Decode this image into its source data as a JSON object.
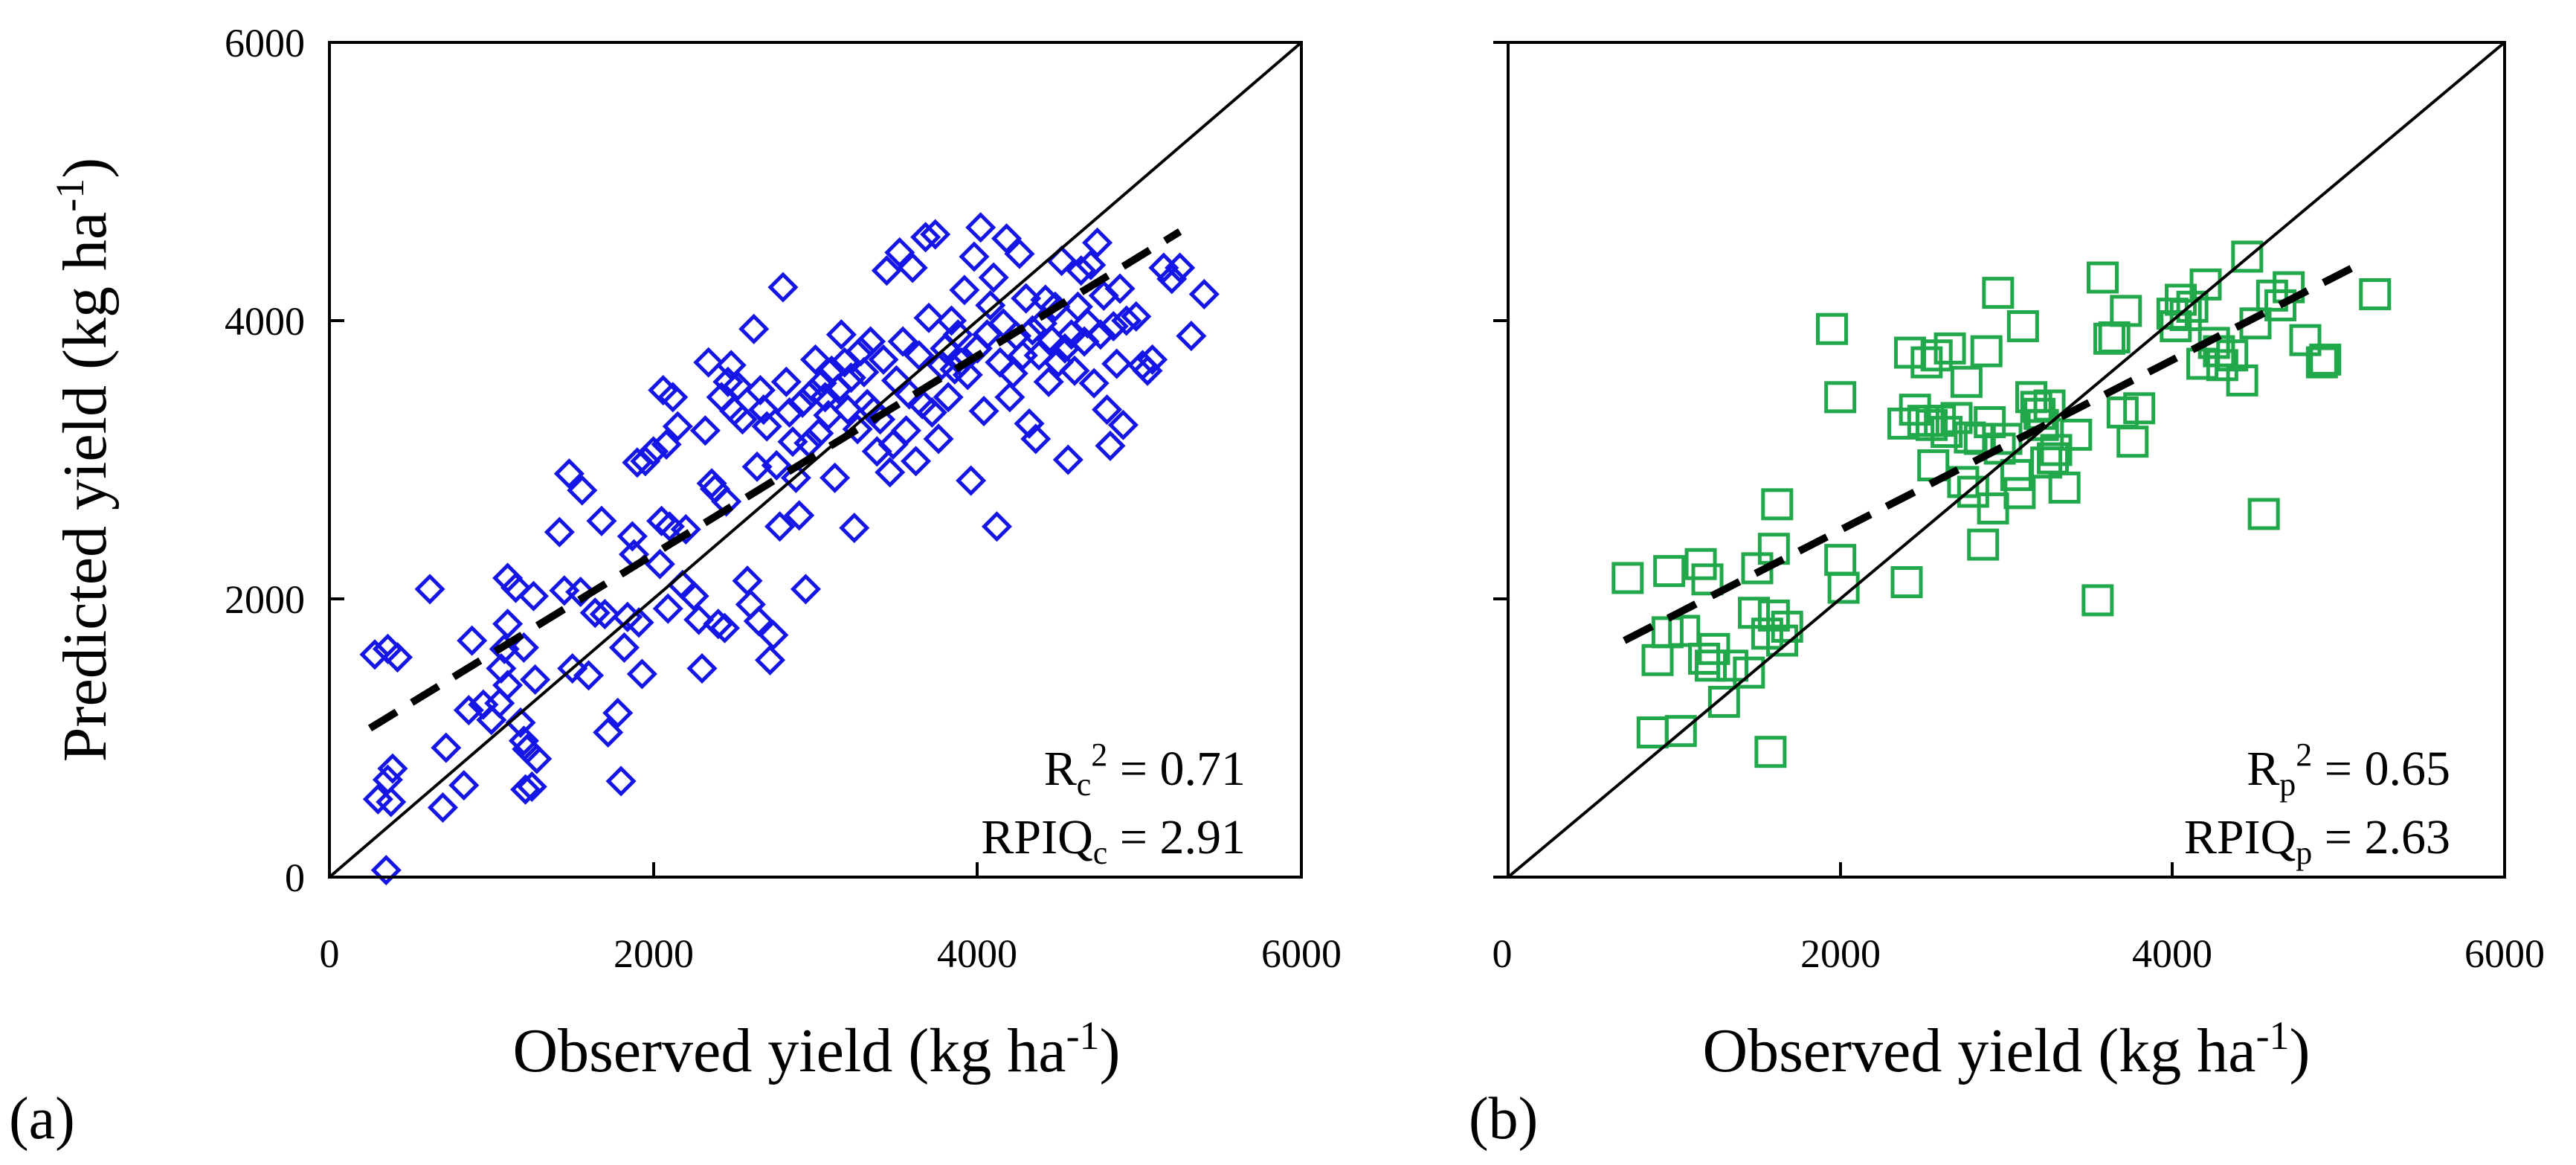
{
  "chart_data": [
    {
      "type": "scatter",
      "panel_label": "(a)",
      "xlabel": "Observed yield (kg ha",
      "xlabel_sup": "-1",
      "xlabel_end": ")",
      "ylabel": "Predicted yield (kg ha",
      "ylabel_sup": "-1",
      "ylabel_end": ")",
      "xlim": [
        0,
        6000
      ],
      "ylim": [
        0,
        6000
      ],
      "xticks": [
        "0",
        "2000",
        "4000",
        "6000"
      ],
      "yticks": [
        "0",
        "2000",
        "4000",
        "6000"
      ],
      "marker": "diamond",
      "color": "#1515e6",
      "one_to_one_line": true,
      "fit_line": {
        "x": [
          250,
          5250
        ],
        "y": [
          1070,
          4640
        ]
      },
      "stats": {
        "r2_prefix": "R",
        "r2_sub": "c",
        "r2_sup": "2",
        "r2_value": " = 0.71",
        "rpiq_prefix": "RPIQ",
        "rpiq_sub": "c",
        "rpiq_value": " = 2.91"
      },
      "points": [
        [
          350,
          50
        ],
        [
          300,
          560
        ],
        [
          380,
          540
        ],
        [
          360,
          700
        ],
        [
          390,
          780
        ],
        [
          280,
          1600
        ],
        [
          360,
          1640
        ],
        [
          420,
          1580
        ],
        [
          620,
          2070
        ],
        [
          700,
          500
        ],
        [
          720,
          930
        ],
        [
          830,
          660
        ],
        [
          860,
          1200
        ],
        [
          880,
          1700
        ],
        [
          950,
          1240
        ],
        [
          1000,
          1130
        ],
        [
          1050,
          1250
        ],
        [
          1060,
          1500
        ],
        [
          1080,
          1640
        ],
        [
          1100,
          1820
        ],
        [
          1100,
          2150
        ],
        [
          1150,
          2080
        ],
        [
          1180,
          1110
        ],
        [
          1200,
          980
        ],
        [
          1210,
          630
        ],
        [
          1220,
          920
        ],
        [
          1250,
          650
        ],
        [
          1260,
          2020
        ],
        [
          1270,
          1420
        ],
        [
          1280,
          850
        ],
        [
          1200,
          1650
        ],
        [
          1100,
          1380
        ],
        [
          1420,
          2480
        ],
        [
          1450,
          2060
        ],
        [
          1480,
          2900
        ],
        [
          1500,
          1500
        ],
        [
          1550,
          2050
        ],
        [
          1560,
          2780
        ],
        [
          1600,
          1450
        ],
        [
          1640,
          1900
        ],
        [
          1680,
          2560
        ],
        [
          1700,
          1890
        ],
        [
          1720,
          1040
        ],
        [
          1780,
          1180
        ],
        [
          1800,
          690
        ],
        [
          1820,
          1650
        ],
        [
          1840,
          1870
        ],
        [
          1870,
          2450
        ],
        [
          1880,
          2320
        ],
        [
          1900,
          2980
        ],
        [
          1910,
          1830
        ],
        [
          1930,
          1460
        ],
        [
          1950,
          2990
        ],
        [
          2000,
          3060
        ],
        [
          2040,
          2250
        ],
        [
          2050,
          2560
        ],
        [
          2060,
          3500
        ],
        [
          2080,
          3110
        ],
        [
          2090,
          1930
        ],
        [
          2100,
          2520
        ],
        [
          2120,
          3450
        ],
        [
          2150,
          3240
        ],
        [
          2180,
          2100
        ],
        [
          2200,
          2500
        ],
        [
          2250,
          2020
        ],
        [
          2280,
          1850
        ],
        [
          2300,
          1500
        ],
        [
          2320,
          3210
        ],
        [
          2340,
          3700
        ],
        [
          2360,
          2830
        ],
        [
          2380,
          2790
        ],
        [
          2400,
          1820
        ],
        [
          2420,
          3450
        ],
        [
          2440,
          1790
        ],
        [
          2450,
          2700
        ],
        [
          2460,
          3560
        ],
        [
          2480,
          3680
        ],
        [
          2500,
          3350
        ],
        [
          2520,
          3530
        ],
        [
          2550,
          3290
        ],
        [
          2580,
          2130
        ],
        [
          2600,
          1960
        ],
        [
          2620,
          3940
        ],
        [
          2640,
          2950
        ],
        [
          2650,
          1840
        ],
        [
          2660,
          3500
        ],
        [
          2680,
          3360
        ],
        [
          2700,
          3240
        ],
        [
          2720,
          1560
        ],
        [
          2740,
          1740
        ],
        [
          2760,
          2960
        ],
        [
          2780,
          2520
        ],
        [
          2800,
          4240
        ],
        [
          2820,
          3560
        ],
        [
          2840,
          3340
        ],
        [
          2860,
          3130
        ],
        [
          2880,
          2870
        ],
        [
          2900,
          2600
        ],
        [
          2920,
          3410
        ],
        [
          2940,
          2070
        ],
        [
          2960,
          3120
        ],
        [
          2980,
          3480
        ],
        [
          3000,
          3720
        ],
        [
          3020,
          3190
        ],
        [
          3040,
          3550
        ],
        [
          3060,
          3450
        ],
        [
          3080,
          3320
        ],
        [
          3100,
          3640
        ],
        [
          3120,
          2870
        ],
        [
          3140,
          3510
        ],
        [
          3160,
          3900
        ],
        [
          3180,
          3700
        ],
        [
          3200,
          3360
        ],
        [
          3220,
          3590
        ],
        [
          3240,
          2510
        ],
        [
          3260,
          3220
        ],
        [
          3280,
          3780
        ],
        [
          3300,
          3630
        ],
        [
          3320,
          3400
        ],
        [
          3340,
          3850
        ],
        [
          3360,
          3350
        ],
        [
          3380,
          3060
        ],
        [
          3400,
          3290
        ],
        [
          3420,
          3720
        ],
        [
          3440,
          4360
        ],
        [
          3460,
          2910
        ],
        [
          3480,
          3110
        ],
        [
          3500,
          3570
        ],
        [
          3520,
          4490
        ],
        [
          3540,
          3850
        ],
        [
          3560,
          3210
        ],
        [
          3580,
          3470
        ],
        [
          3600,
          4380
        ],
        [
          3620,
          2990
        ],
        [
          3640,
          3750
        ],
        [
          3660,
          3400
        ],
        [
          3680,
          4600
        ],
        [
          3700,
          4020
        ],
        [
          3720,
          3340
        ],
        [
          3740,
          4620
        ],
        [
          3760,
          3150
        ],
        [
          3780,
          3680
        ],
        [
          3800,
          3800
        ],
        [
          3820,
          3450
        ],
        [
          3840,
          4000
        ],
        [
          3860,
          3650
        ],
        [
          3880,
          3900
        ],
        [
          3900,
          3700
        ],
        [
          3920,
          4220
        ],
        [
          3940,
          3610
        ],
        [
          3960,
          2850
        ],
        [
          3980,
          4460
        ],
        [
          4000,
          3800
        ],
        [
          4020,
          4670
        ],
        [
          4040,
          3350
        ],
        [
          4060,
          3900
        ],
        [
          4080,
          4110
        ],
        [
          4100,
          4310
        ],
        [
          4120,
          2520
        ],
        [
          4140,
          3700
        ],
        [
          4160,
          3980
        ],
        [
          4180,
          4590
        ],
        [
          4200,
          3450
        ],
        [
          4220,
          3620
        ],
        [
          4240,
          3890
        ],
        [
          4260,
          4480
        ],
        [
          4280,
          3750
        ],
        [
          4300,
          4160
        ],
        [
          4320,
          3260
        ],
        [
          4340,
          3930
        ],
        [
          4360,
          3150
        ],
        [
          4380,
          3750
        ],
        [
          4400,
          3980
        ],
        [
          4420,
          4150
        ],
        [
          4440,
          3560
        ],
        [
          4460,
          3860
        ],
        [
          4480,
          4100
        ],
        [
          4500,
          3700
        ],
        [
          4520,
          4430
        ],
        [
          4540,
          3800
        ],
        [
          4560,
          3000
        ],
        [
          4580,
          3900
        ],
        [
          4600,
          3640
        ],
        [
          4620,
          4100
        ],
        [
          4640,
          4360
        ],
        [
          4660,
          3850
        ],
        [
          4680,
          3980
        ],
        [
          4700,
          4400
        ],
        [
          4720,
          3550
        ],
        [
          4740,
          4560
        ],
        [
          4760,
          3900
        ],
        [
          4780,
          4180
        ],
        [
          4800,
          3360
        ],
        [
          4820,
          3100
        ],
        [
          4840,
          3960
        ],
        [
          4860,
          3690
        ],
        [
          4880,
          4230
        ],
        [
          4900,
          3250
        ],
        [
          4920,
          4000
        ],
        [
          4980,
          4030
        ],
        [
          5020,
          3680
        ],
        [
          5050,
          3640
        ],
        [
          5080,
          3720
        ],
        [
          5150,
          4380
        ],
        [
          5200,
          4300
        ],
        [
          5250,
          4380
        ],
        [
          5320,
          3890
        ],
        [
          5400,
          4190
        ]
      ]
    },
    {
      "type": "scatter",
      "panel_label": "(b)",
      "xlabel": "Observed yield (kg ha",
      "xlabel_sup": "-1",
      "xlabel_end": ")",
      "xlim": [
        0,
        6000
      ],
      "ylim": [
        0,
        6000
      ],
      "xticks": [
        "0",
        "2000",
        "4000",
        "6000"
      ],
      "marker": "square",
      "color": "#21a84a",
      "one_to_one_line": true,
      "fit_line": {
        "x": [
          700,
          5100
        ],
        "y": [
          1700,
          4390
        ]
      },
      "stats": {
        "r2_prefix": "R",
        "r2_sub": "p",
        "r2_sup": "2",
        "r2_value": " = 0.65",
        "rpiq_prefix": "RPIQ",
        "rpiq_sub": "p",
        "rpiq_value": " = 2.63"
      },
      "points": [
        [
          720,
          2150
        ],
        [
          870,
          1040
        ],
        [
          900,
          1560
        ],
        [
          960,
          1760
        ],
        [
          970,
          2200
        ],
        [
          1040,
          1050
        ],
        [
          1060,
          1770
        ],
        [
          1160,
          2250
        ],
        [
          1180,
          1570
        ],
        [
          1200,
          2140
        ],
        [
          1220,
          1520
        ],
        [
          1240,
          1640
        ],
        [
          1300,
          1260
        ],
        [
          1350,
          1520
        ],
        [
          1450,
          1470
        ],
        [
          1480,
          1900
        ],
        [
          1500,
          2220
        ],
        [
          1560,
          1750
        ],
        [
          1580,
          900
        ],
        [
          1600,
          1880
        ],
        [
          1620,
          2680
        ],
        [
          1650,
          1700
        ],
        [
          1680,
          1800
        ],
        [
          1600,
          2360
        ],
        [
          1950,
          3940
        ],
        [
          2000,
          2280
        ],
        [
          2020,
          2080
        ],
        [
          2000,
          3450
        ],
        [
          2380,
          3260
        ],
        [
          2400,
          2120
        ],
        [
          2420,
          3770
        ],
        [
          2450,
          3360
        ],
        [
          2500,
          3280
        ],
        [
          2520,
          3700
        ],
        [
          2550,
          3250
        ],
        [
          2560,
          2960
        ],
        [
          2580,
          3750
        ],
        [
          2600,
          3280
        ],
        [
          2640,
          3200
        ],
        [
          2660,
          3800
        ],
        [
          2700,
          3300
        ],
        [
          2740,
          2840
        ],
        [
          2760,
          3560
        ],
        [
          2780,
          3160
        ],
        [
          2800,
          2770
        ],
        [
          2840,
          3150
        ],
        [
          2860,
          2390
        ],
        [
          2880,
          3780
        ],
        [
          2900,
          3270
        ],
        [
          2920,
          2650
        ],
        [
          2950,
          4200
        ],
        [
          2960,
          3080
        ],
        [
          3000,
          3150
        ],
        [
          3060,
          2890
        ],
        [
          3080,
          2760
        ],
        [
          3100,
          3960
        ],
        [
          3150,
          3450
        ],
        [
          3180,
          3380
        ],
        [
          3200,
          3330
        ],
        [
          3220,
          3250
        ],
        [
          3240,
          2980
        ],
        [
          3260,
          3390
        ],
        [
          3280,
          3010
        ],
        [
          3300,
          3070
        ],
        [
          3350,
          2800
        ],
        [
          3420,
          3180
        ],
        [
          3550,
          1990
        ],
        [
          3580,
          4310
        ],
        [
          3620,
          3870
        ],
        [
          3650,
          3880
        ],
        [
          3700,
          3340
        ],
        [
          3720,
          4070
        ],
        [
          3760,
          3130
        ],
        [
          3800,
          3370
        ],
        [
          4000,
          4050
        ],
        [
          4020,
          3960
        ],
        [
          4050,
          4150
        ],
        [
          4080,
          4040
        ],
        [
          4120,
          4100
        ],
        [
          4180,
          3690
        ],
        [
          4200,
          4260
        ],
        [
          4250,
          3840
        ],
        [
          4280,
          3780
        ],
        [
          4300,
          3680
        ],
        [
          4360,
          3750
        ],
        [
          4420,
          3570
        ],
        [
          4450,
          4460
        ],
        [
          4500,
          3980
        ],
        [
          4550,
          2610
        ],
        [
          4600,
          4180
        ],
        [
          4650,
          4110
        ],
        [
          4700,
          4240
        ],
        [
          4800,
          3860
        ],
        [
          4900,
          3700
        ],
        [
          4920,
          3720
        ],
        [
          5220,
          4190
        ]
      ]
    }
  ]
}
